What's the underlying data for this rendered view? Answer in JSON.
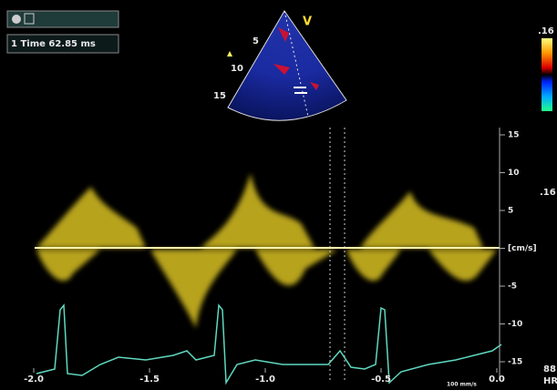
{
  "header": {
    "timing": "1 Time 62.85 ms"
  },
  "sector": {
    "depth_labels": [
      "5",
      "10",
      "15"
    ],
    "mode": "V"
  },
  "color_scale": {
    "top": ".16",
    "bottom": ".16"
  },
  "velocity_axis": {
    "labels": [
      "15",
      "10",
      "5",
      "[cm/s]",
      "-5",
      "-10",
      "-15"
    ]
  },
  "time_axis": {
    "labels": [
      "-2.0",
      "-1.5",
      "-1.0",
      "-0.5",
      "0.0"
    ],
    "sweep": "100 mm/s"
  },
  "heart_rate": {
    "value": "88",
    "unit": "HR"
  }
}
